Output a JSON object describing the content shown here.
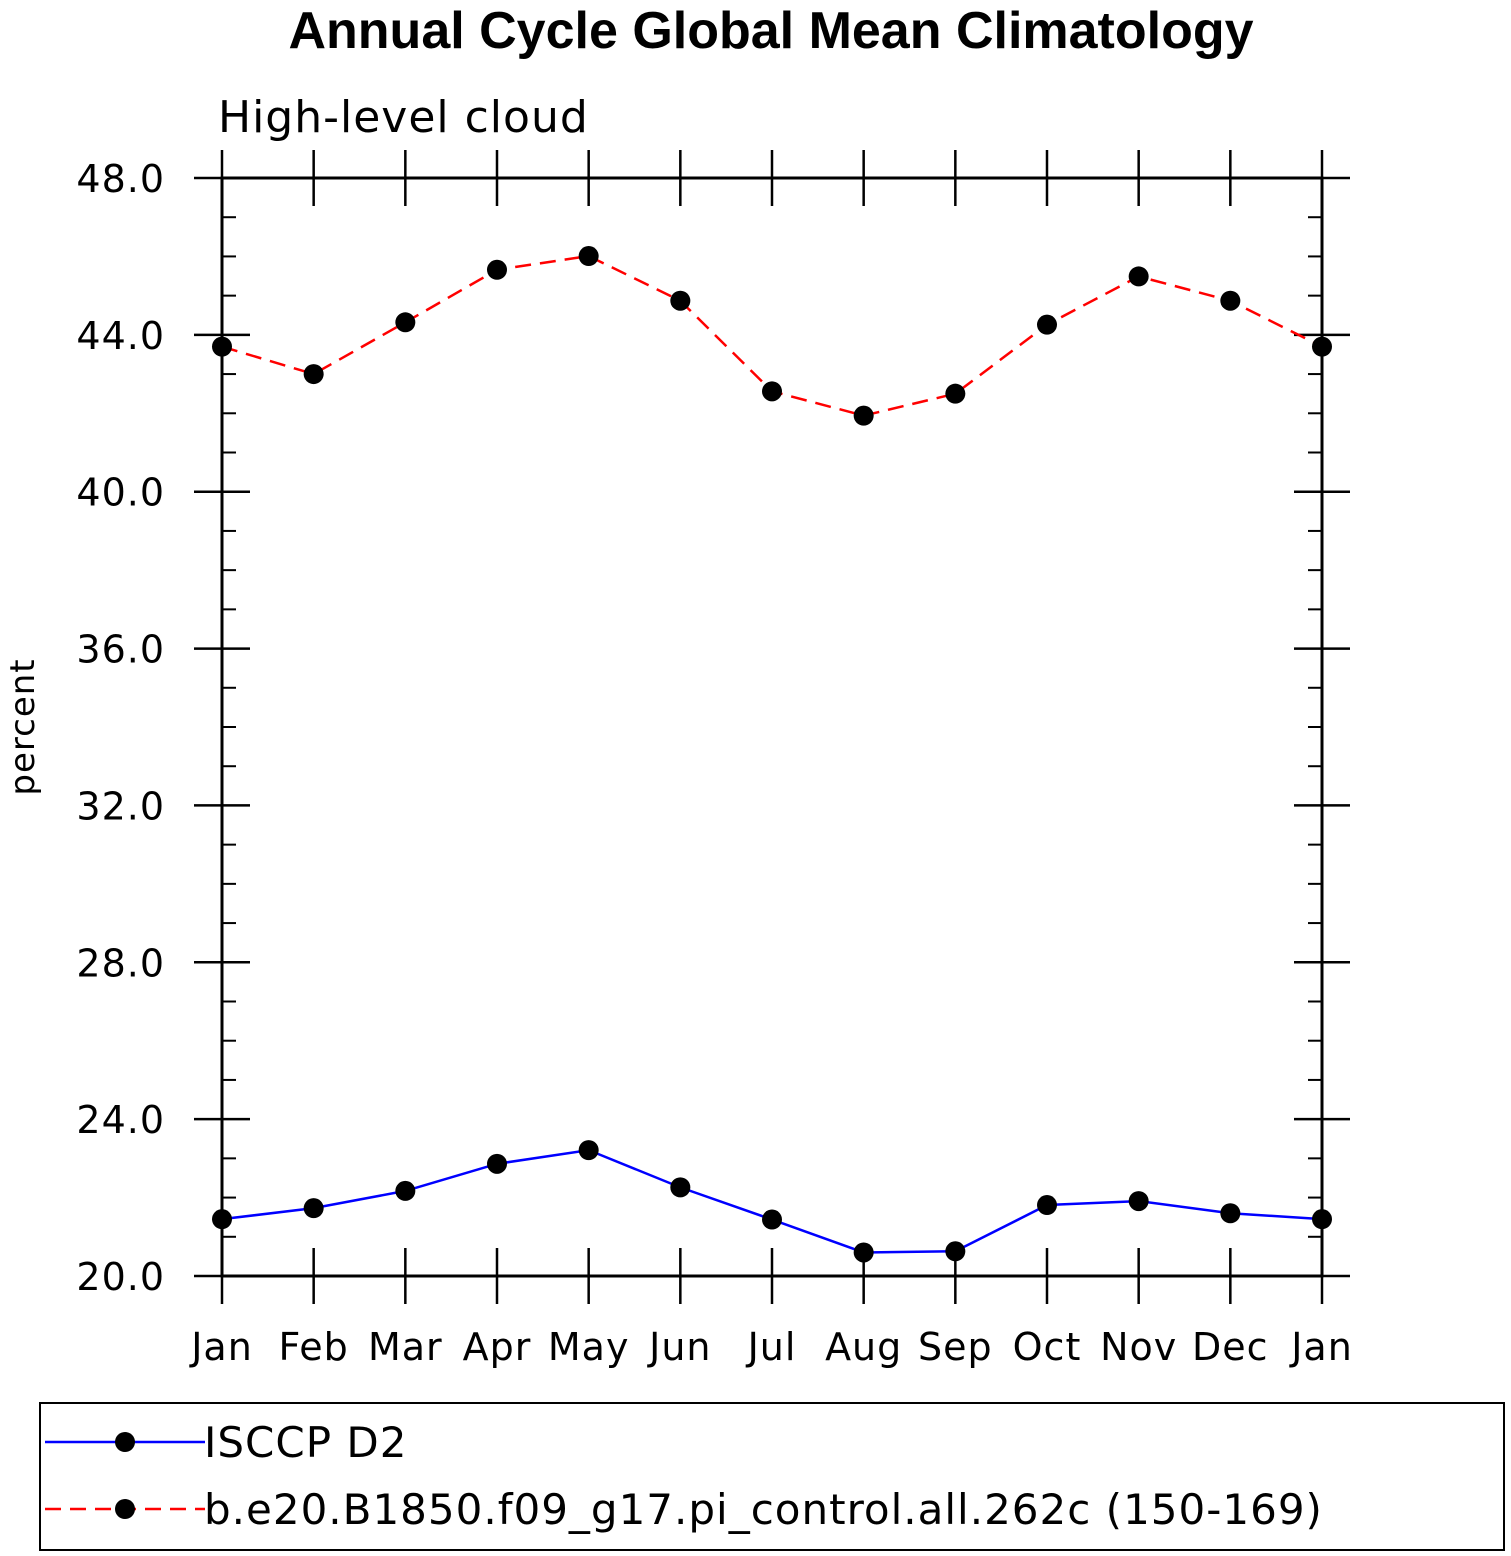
{
  "chart_data": {
    "type": "line",
    "title": "Annual Cycle Global Mean Climatology",
    "subtitle": "High-level cloud",
    "xlabel": "",
    "ylabel": "percent",
    "categories": [
      "Jan",
      "Feb",
      "Mar",
      "Apr",
      "May",
      "Jun",
      "Jul",
      "Aug",
      "Sep",
      "Oct",
      "Nov",
      "Dec",
      "Jan"
    ],
    "ylim": [
      20.0,
      48.0
    ],
    "yticks": [
      20.0,
      24.0,
      28.0,
      32.0,
      36.0,
      40.0,
      44.0,
      48.0
    ],
    "ytick_labels": [
      "20.0",
      "24.0",
      "28.0",
      "32.0",
      "36.0",
      "40.0",
      "44.0",
      "48.0"
    ],
    "grid": false,
    "legend_position": "bottom",
    "series": [
      {
        "name": "ISCCP D2",
        "color": "#0000ff",
        "dash": "solid",
        "marker": "filled-circle",
        "values": [
          21.45,
          21.73,
          22.17,
          22.86,
          23.21,
          22.26,
          21.44,
          20.6,
          20.63,
          21.81,
          21.91,
          21.6,
          21.45
        ]
      },
      {
        "name": "b.e20.B1850.f09_g17.pi_control.all.262c (150-169)",
        "color": "#ff0000",
        "dash": "dashed",
        "marker": "filled-circle",
        "values": [
          43.7,
          43.0,
          44.32,
          45.66,
          46.01,
          44.87,
          42.56,
          41.94,
          42.5,
          44.26,
          45.49,
          44.87,
          43.7
        ]
      }
    ]
  }
}
